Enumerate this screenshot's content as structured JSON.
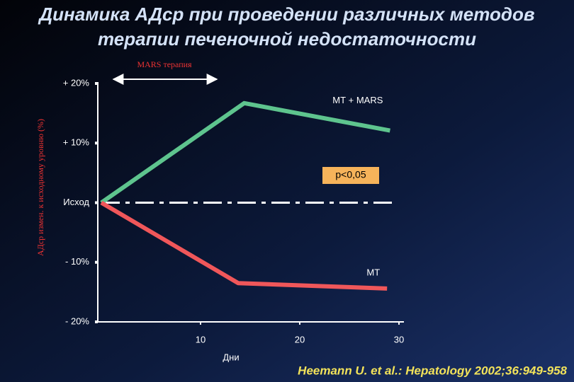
{
  "chart_data": {
    "type": "line",
    "title": [
      "Динамика АДср при проведении различных методов",
      "терапии печеночной недостаточности"
    ],
    "ylabel": "АДср измен. к исходному уровню (%)",
    "xlabel": "Дни",
    "xlim": [
      0,
      30
    ],
    "xticks": [
      10,
      20,
      30
    ],
    "ylim": [
      -20,
      20
    ],
    "yticks": [
      {
        "value": 20,
        "label": "+ 20%"
      },
      {
        "value": 10,
        "label": "+ 10%"
      },
      {
        "value": 0,
        "label": "Исход"
      },
      {
        "value": -10,
        "label": "- 10%"
      },
      {
        "value": -20,
        "label": "- 20%"
      }
    ],
    "series": [
      {
        "name": "МТ + MARS",
        "color": "#5ec48e",
        "x": [
          0,
          14.4,
          29.1
        ],
        "values": [
          0,
          16.7,
          12.1
        ]
      },
      {
        "name": "МТ",
        "color": "#f0575a",
        "x": [
          0,
          13.8,
          28.8
        ],
        "values": [
          0,
          -13.5,
          -14.4
        ]
      }
    ],
    "annotations": {
      "therapy": "MARS терапия",
      "pvalue": "p<0,05",
      "citation": "Heemann U. et al.: Hepatology 2002;36:949-958"
    }
  }
}
